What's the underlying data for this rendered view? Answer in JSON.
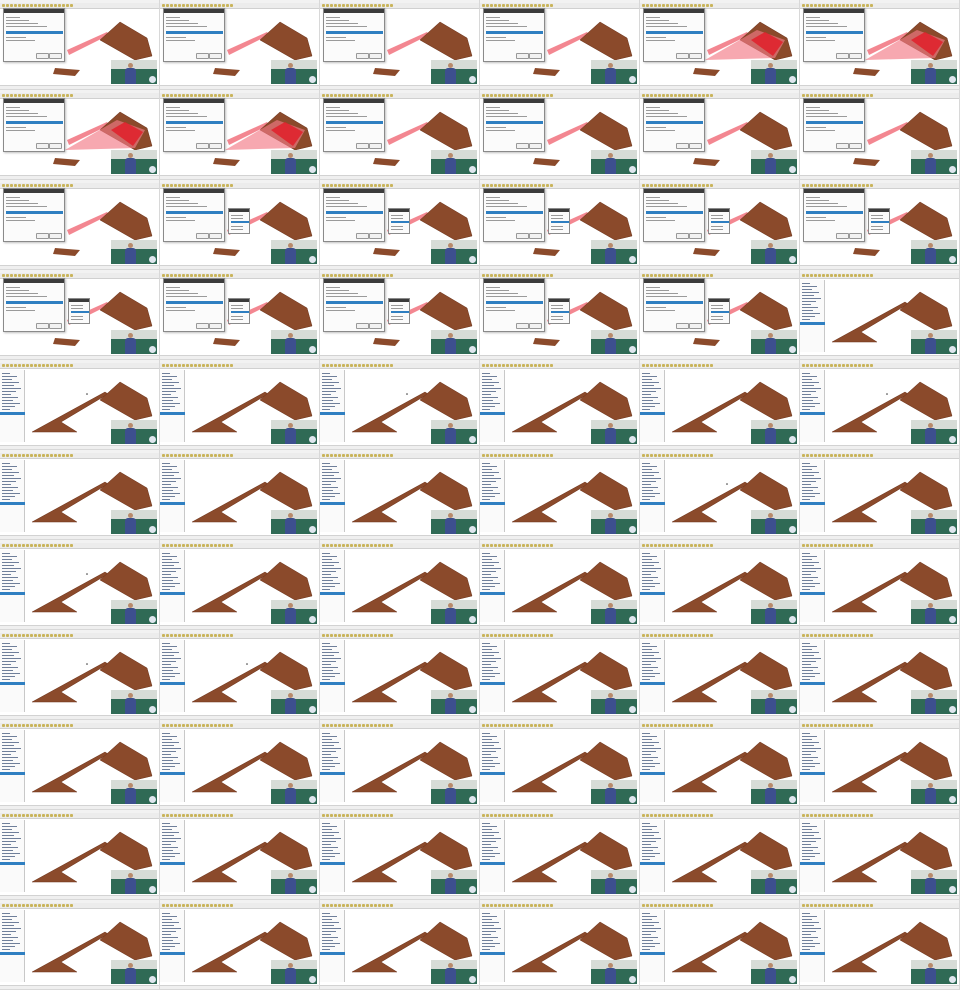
{
  "sheet": {
    "columns": 6,
    "rows": 11
  },
  "colors": {
    "polygon_fill": "#8b4a2b",
    "polygon_stroke": "#6a3018",
    "highlight_red": "#e0202a",
    "highlight_pink": "#f27a85",
    "selection_blue": "#2f7fc1",
    "dialog_title_bg": "#3b3b3b",
    "toolbar_bg": "#ececec"
  },
  "icons": {
    "toolbar": "toolbar-icon",
    "layer": "layer-icon"
  },
  "status_text": "",
  "dialog_title": "",
  "frames": [
    {
      "variant": "dialog",
      "hl": 0,
      "dot": 0
    },
    {
      "variant": "dialog",
      "hl": 0,
      "dot": 0
    },
    {
      "variant": "dialog",
      "hl": 0,
      "dot": 0
    },
    {
      "variant": "dialog",
      "hl": 0,
      "dot": 0
    },
    {
      "variant": "dialog",
      "hl": 1,
      "dot": 0
    },
    {
      "variant": "dialog",
      "hl": 1,
      "dot": 0
    },
    {
      "variant": "dialog",
      "hl": 1,
      "dot": 0
    },
    {
      "variant": "dialog",
      "hl": 1,
      "dot": 0
    },
    {
      "variant": "dialog",
      "hl": 0,
      "dot": 0
    },
    {
      "variant": "dialog",
      "hl": 0,
      "dot": 0
    },
    {
      "variant": "dialog",
      "hl": 0,
      "dot": 0
    },
    {
      "variant": "dialog",
      "hl": 0,
      "dot": 0
    },
    {
      "variant": "dialog",
      "hl": 0,
      "dot": 0
    },
    {
      "variant": "dialog2",
      "hl": 0,
      "dot": 0
    },
    {
      "variant": "dialog2",
      "hl": 0,
      "dot": 0
    },
    {
      "variant": "dialog2",
      "hl": 0,
      "dot": 0
    },
    {
      "variant": "dialog2",
      "hl": 0,
      "dot": 0
    },
    {
      "variant": "dialog2",
      "hl": 0,
      "dot": 0
    },
    {
      "variant": "dialog2",
      "hl": 0,
      "dot": 0
    },
    {
      "variant": "dialog2",
      "hl": 0,
      "dot": 0
    },
    {
      "variant": "dialog2",
      "hl": 0,
      "dot": 0
    },
    {
      "variant": "dialog2",
      "hl": 0,
      "dot": 0
    },
    {
      "variant": "dialog2",
      "hl": 0,
      "dot": 0
    },
    {
      "variant": "map",
      "hl": 0,
      "dot": 0
    },
    {
      "variant": "map",
      "hl": 0,
      "dot": 1
    },
    {
      "variant": "map",
      "hl": 0,
      "dot": 0
    },
    {
      "variant": "map",
      "hl": 0,
      "dot": 1
    },
    {
      "variant": "map",
      "hl": 0,
      "dot": 0
    },
    {
      "variant": "map",
      "hl": 0,
      "dot": 0
    },
    {
      "variant": "map",
      "hl": 0,
      "dot": 1
    },
    {
      "variant": "map",
      "hl": 0,
      "dot": 0
    },
    {
      "variant": "map",
      "hl": 0,
      "dot": 0
    },
    {
      "variant": "map",
      "hl": 0,
      "dot": 0
    },
    {
      "variant": "map",
      "hl": 0,
      "dot": 0
    },
    {
      "variant": "map",
      "hl": 0,
      "dot": 1
    },
    {
      "variant": "map",
      "hl": 0,
      "dot": 0
    },
    {
      "variant": "map",
      "hl": 0,
      "dot": 1
    },
    {
      "variant": "map",
      "hl": 0,
      "dot": 0
    },
    {
      "variant": "map",
      "hl": 0,
      "dot": 0
    },
    {
      "variant": "map",
      "hl": 0,
      "dot": 0
    },
    {
      "variant": "map",
      "hl": 0,
      "dot": 0
    },
    {
      "variant": "map",
      "hl": 0,
      "dot": 0
    },
    {
      "variant": "map",
      "hl": 0,
      "dot": 1
    },
    {
      "variant": "map",
      "hl": 0,
      "dot": 1
    },
    {
      "variant": "map",
      "hl": 0,
      "dot": 0
    },
    {
      "variant": "map",
      "hl": 0,
      "dot": 0
    },
    {
      "variant": "map",
      "hl": 0,
      "dot": 0
    },
    {
      "variant": "map",
      "hl": 0,
      "dot": 0
    },
    {
      "variant": "map",
      "hl": 0,
      "dot": 0
    },
    {
      "variant": "map",
      "hl": 0,
      "dot": 0
    },
    {
      "variant": "map",
      "hl": 0,
      "dot": 0
    },
    {
      "variant": "map",
      "hl": 0,
      "dot": 0
    },
    {
      "variant": "map",
      "hl": 0,
      "dot": 0
    },
    {
      "variant": "map",
      "hl": 0,
      "dot": 0
    },
    {
      "variant": "map",
      "hl": 0,
      "dot": 0
    },
    {
      "variant": "map",
      "hl": 0,
      "dot": 0
    },
    {
      "variant": "map",
      "hl": 0,
      "dot": 0
    },
    {
      "variant": "map",
      "hl": 0,
      "dot": 0
    },
    {
      "variant": "map",
      "hl": 0,
      "dot": 0
    },
    {
      "variant": "map",
      "hl": 0,
      "dot": 0
    },
    {
      "variant": "map",
      "hl": 0,
      "dot": 0
    },
    {
      "variant": "map",
      "hl": 0,
      "dot": 0
    },
    {
      "variant": "map",
      "hl": 0,
      "dot": 0
    },
    {
      "variant": "map",
      "hl": 0,
      "dot": 0
    },
    {
      "variant": "map",
      "hl": 0,
      "dot": 0
    },
    {
      "variant": "map",
      "hl": 0,
      "dot": 0
    }
  ]
}
